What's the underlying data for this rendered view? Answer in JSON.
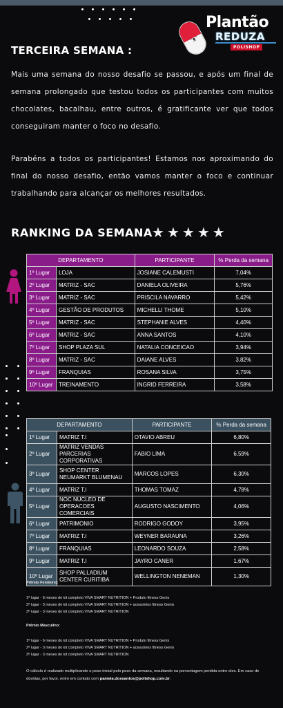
{
  "logo": {
    "line1": "Plantão",
    "line2": "REDUZA",
    "brand": "POLISHOP",
    "face": "ᵔᴥᵔ"
  },
  "section": {
    "title": "TERCEIRA SEMANA :",
    "paragraph1": "Mais uma semana do nosso desafio se passou, e após um final de semana prolongado que testou todos os participantes com muitos chocolates, bacalhau, entre outros, é gratificante ver que todos conseguiram manter o foco no desafio.",
    "paragraph2": "Parabéns a todos os participantes! Estamos nos aproximando do final do nosso desafio, então vamos manter o foco e continuar trabalhando para alcançar os melhores resultados."
  },
  "ranking": {
    "title": "RANKING DA SEMANA",
    "stars": [
      "★",
      "★",
      "★",
      "★",
      "★"
    ],
    "star_count": 5
  },
  "female_table": {
    "headers": [
      "DEPARTAMENTO",
      "PARTICIPANTE",
      "% Perda da semana"
    ],
    "rows": [
      {
        "pos": "1º Lugar",
        "dept": "LOJA",
        "name": "JOSIANE CALEMUSTI",
        "perc": "7,04%"
      },
      {
        "pos": "2º Lugar",
        "dept": "MATRIZ - SAC",
        "name": "DANIELA OLIVEIRA",
        "perc": "5,76%"
      },
      {
        "pos": "3º Lugar",
        "dept": "MATRIZ - SAC",
        "name": "PRISCILA NAVARRO",
        "perc": "5,42%"
      },
      {
        "pos": "4º Lugar",
        "dept": "GESTÃO DE PRODUTOS",
        "name": "MICHELLI THOME",
        "perc": "5,10%"
      },
      {
        "pos": "5º Lugar",
        "dept": "MATRIZ - SAC",
        "name": "STEPHANIE ALVES",
        "perc": "4,40%"
      },
      {
        "pos": "6º Lugar",
        "dept": "MATRIZ - SAC",
        "name": "ANNA SANTOS",
        "perc": "4,10%"
      },
      {
        "pos": "7º Lugar",
        "dept": "SHOP PLAZA SUL",
        "name": "NATALIA CONCEICAO",
        "perc": "3,94%"
      },
      {
        "pos": "8º Lugar",
        "dept": "MATRIZ - SAC",
        "name": "DAIANE ALVES",
        "perc": "3,82%"
      },
      {
        "pos": "9º Lugar",
        "dept": "FRANQUIAS",
        "name": "ROSANA SILVA",
        "perc": "3,75%"
      },
      {
        "pos": "10º Lugar",
        "dept": "TREINAMENTO",
        "name": "INGRID FERREIRA",
        "perc": "3,58%"
      }
    ]
  },
  "male_table": {
    "headers": [
      "DEPARTAMENTO",
      "PARTICIPANTE",
      "% Perda da semana"
    ],
    "rows": [
      {
        "pos": "1º Lugar",
        "dept": "MATRIZ T.I",
        "name": "OTAVIO  ABREU",
        "perc": "6,80%"
      },
      {
        "pos": "2º Lugar",
        "dept": "MATRIZ VENDAS PARCERIAS CORPORATIVAS",
        "name": "FABIO LIMA",
        "perc": "6,59%"
      },
      {
        "pos": "3º Lugar",
        "dept": "SHOP CENTER NEUMARKT BLUMENAU",
        "name": "MARCOS LOPES",
        "perc": "6,30%"
      },
      {
        "pos": "4º Lugar",
        "dept": "MATRIZ T.I",
        "name": "THOMAS TOMAZ",
        "perc": "4,78%"
      },
      {
        "pos": "5º Lugar",
        "dept": "NOC NUCLEO DE OPERACOES COMERCIAIS",
        "name": "AUGUSTO NASCIMENTO",
        "perc": "4,06%"
      },
      {
        "pos": "6º Lugar",
        "dept": "PATRIMONIO",
        "name": "RODRIGO GODOY",
        "perc": "3,95%"
      },
      {
        "pos": "7º Lugar",
        "dept": "MATRIZ T.I",
        "name": "WEYNER BARAUNA",
        "perc": "3,26%"
      },
      {
        "pos": "8º Lugar",
        "dept": "FRANQUIAS",
        "name": "LEONARDO SOUZA",
        "perc": "2,58%"
      },
      {
        "pos": "9º Lugar",
        "dept": "MATRIZ T.I",
        "name": "JAYRO CANER",
        "perc": "1,67%"
      },
      {
        "pos": "10º Lugar",
        "dept": "SHOP PALLADIUM CENTER CURITIBA",
        "name": "WELLINGTON NENEMAN",
        "perc": "1,30%"
      }
    ]
  },
  "prizes": {
    "female_title": "Prêmio Feminino:",
    "female": [
      "1º lugar - 6 meses do kit completo VIVA SMART NUTRITION + Produto fitness Genis",
      " 2º lugar - 3 meses do kit completo VIVA SMART NUTRITION + acessórios fitness Genis",
      "3º lugar - 3 meses do kit completo VIVA SMART NUTRITION"
    ],
    "male_title": "Prêmio Masculino:",
    "male": [
      "1º lugar - 6 meses do kit completo VIVA SMART NUTRITION + Produto fitness Genis",
      " 2º lugar - 3 meses do kit completo VIVA SMART NUTRITION + acessórios fitness Genis",
      "3º lugar - 3 meses do kit completo VIVA SMART NUTRITION"
    ]
  },
  "footer": {
    "text": "O cálculo é realizado multiplicando o peso inicial pelo peso da semana, resultando na porcentagem perdida entre eles. Em caso de dúvidas, por favor, entre em contato com ",
    "email": "pamela.dossantos@polishop.com.br",
    "end": "."
  },
  "colors": {
    "background": "#0b0b0d",
    "female_accent": "#8a1c8a",
    "male_accent": "#3b5160",
    "woman_icon": "#b3167f",
    "man_icon": "#3d5566"
  },
  "icons": [
    "woman-icon",
    "man-icon",
    "star-icon",
    "pill-mascot-icon"
  ]
}
